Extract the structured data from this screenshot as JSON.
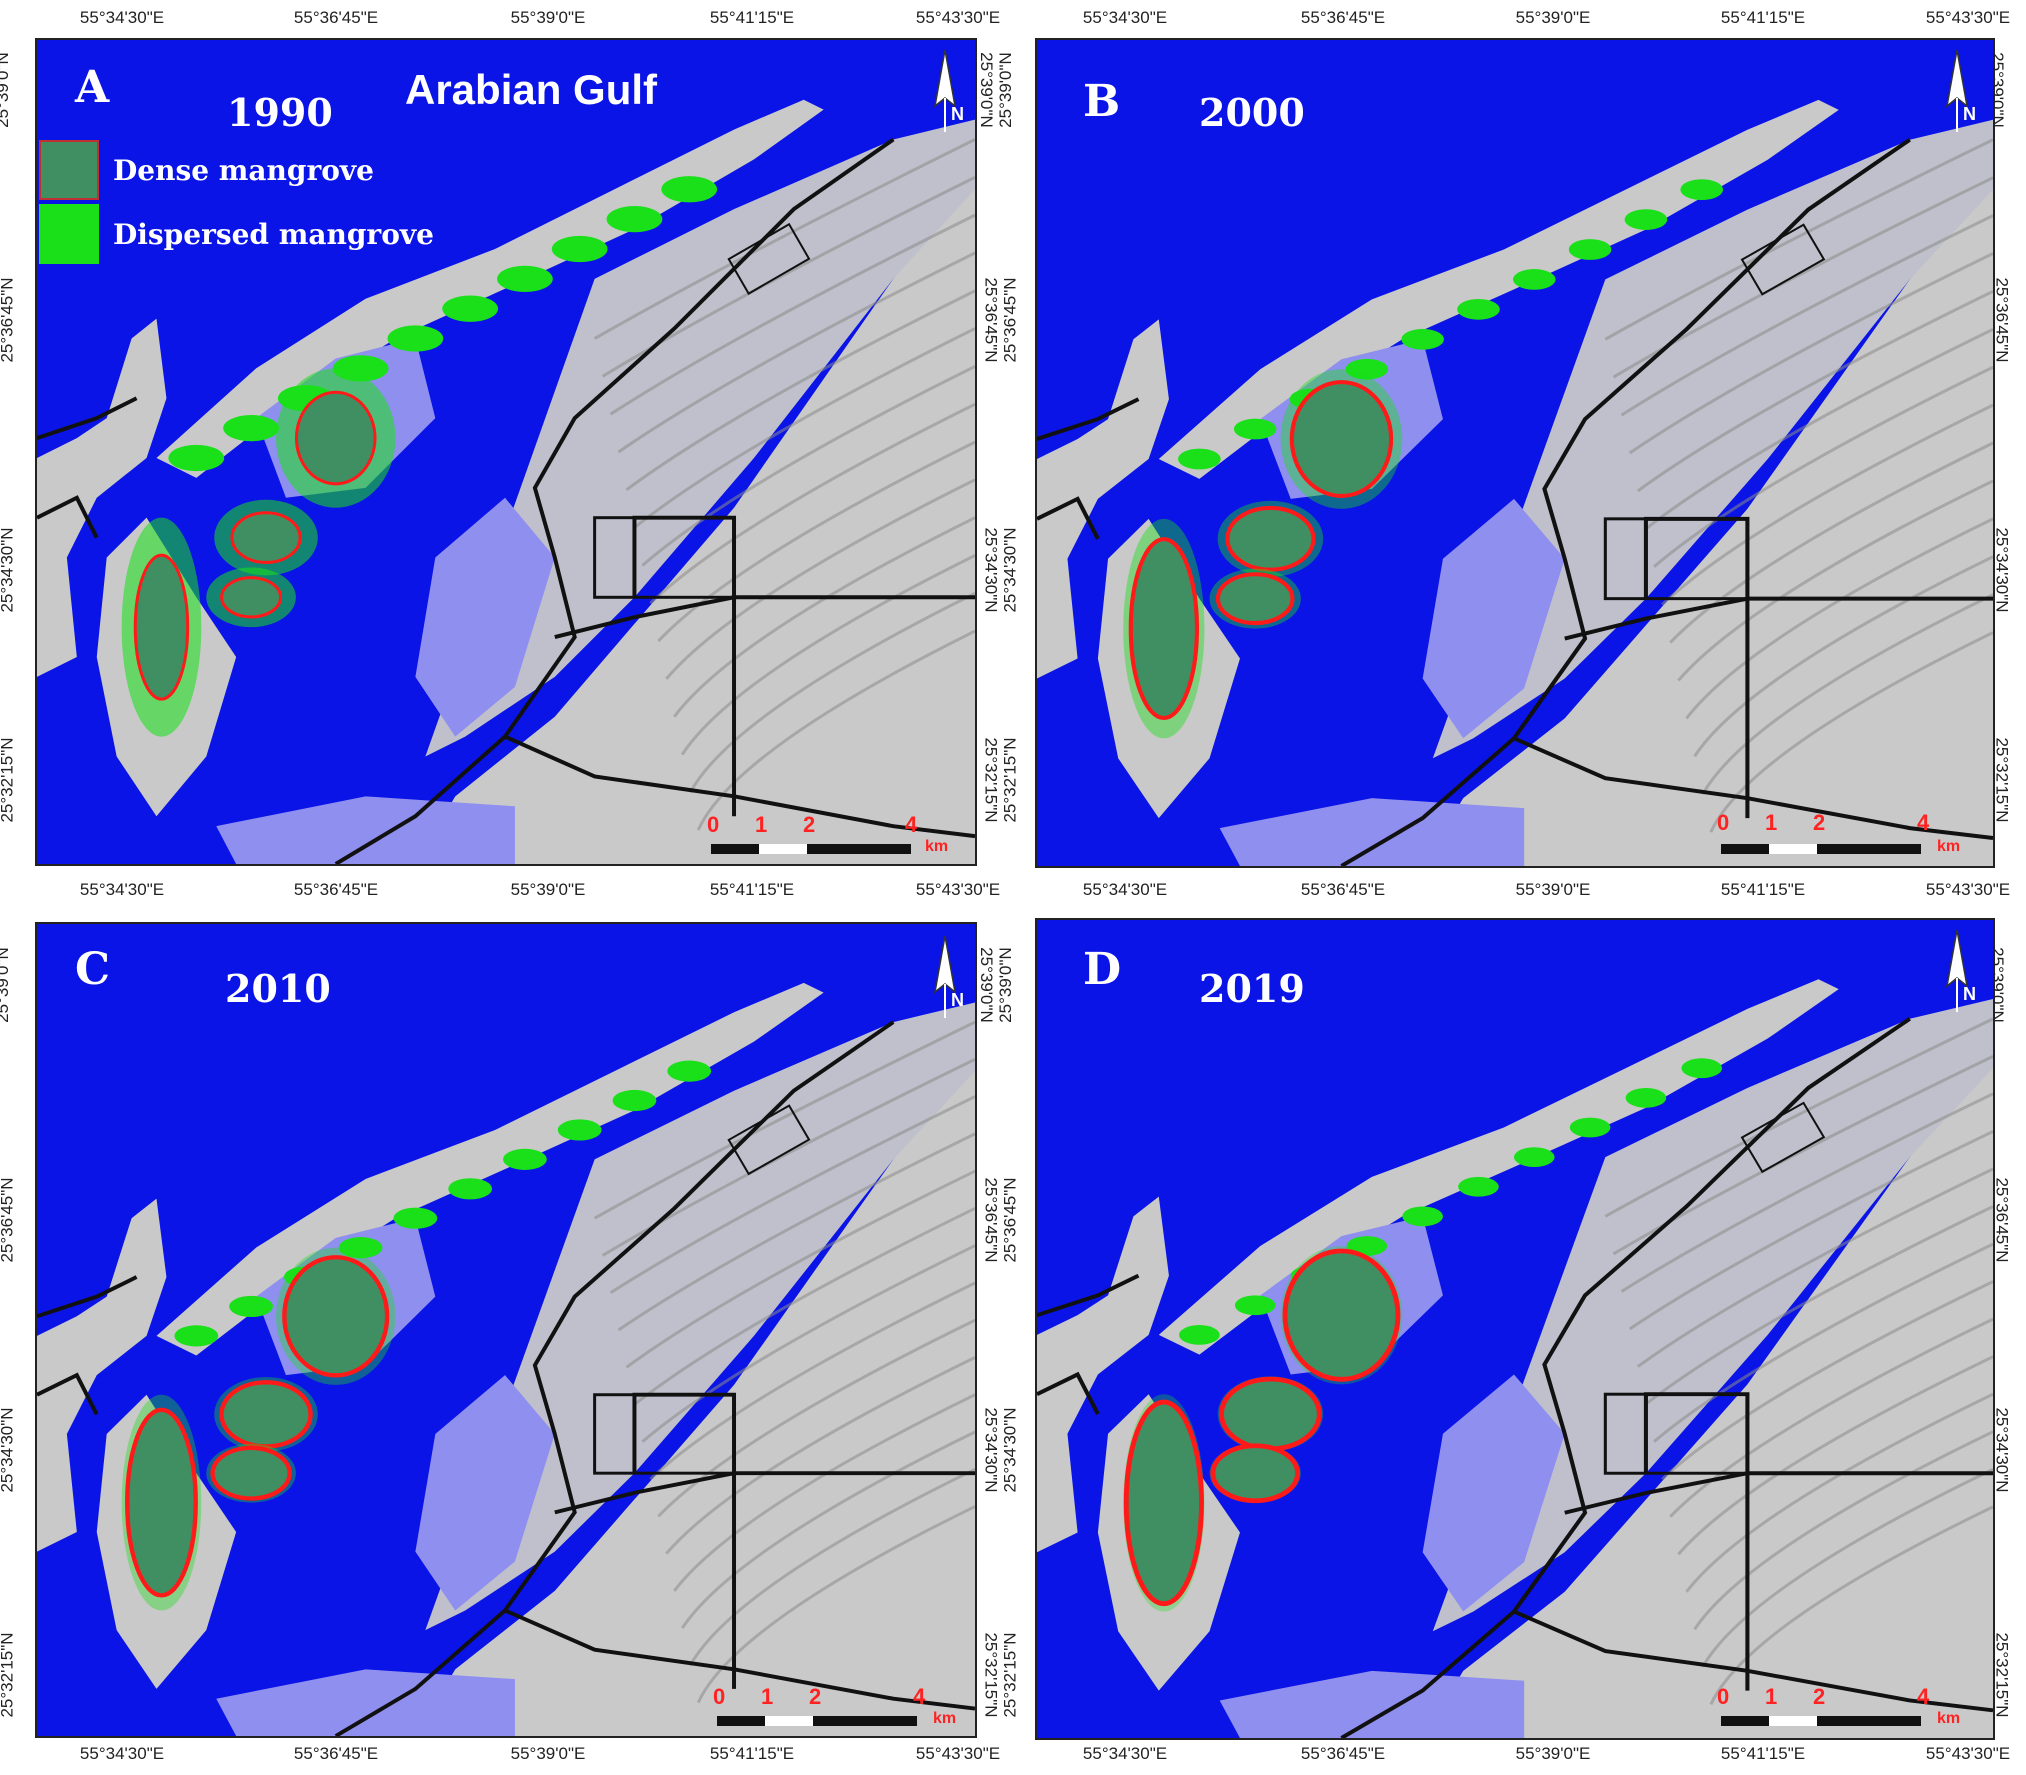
{
  "map": {
    "gulf_label": "Arabian Gulf",
    "legend": [
      {
        "label": "Dense mangrove",
        "color": "#3f8f63",
        "border": "#c03030"
      },
      {
        "label": "Dispersed mangrove",
        "color": "#19e019",
        "border": "#19e019"
      }
    ],
    "colors": {
      "water": "#0a14e6",
      "land": "#c9c9c9",
      "tidal_flat": "#8f8ff0",
      "dense_mangrove": "#3f8f63",
      "dispersed_mangrove": "#19e019",
      "mangrove_edge": "#ff1a1a",
      "road": "#111111",
      "scale": "#ff2222"
    },
    "longitudes_top_row": [
      "55°34'30\"E",
      "55°36'45\"E",
      "55°39'0\"E",
      "55°41'15\"E",
      "55°43'30\"E"
    ],
    "longitudes_bottom_row": [
      "55°34'30\"E",
      "55°36'45\"E",
      "55°39'0\"E",
      "55°41'15\"E",
      "55°43'30\"E"
    ],
    "latitudes": [
      "25°39'0\"N",
      "25°36'45\"N",
      "25°34'30\"N",
      "25°32'15\"N"
    ],
    "scale_labels": [
      "0",
      "1",
      "2",
      "4"
    ],
    "scale_unit": "km",
    "north_symbol": "N",
    "panels": [
      {
        "letter": "A",
        "year": "1990",
        "dense_level": 0.35,
        "dispersed_level": 0.9
      },
      {
        "letter": "B",
        "year": "2000",
        "dense_level": 0.7,
        "dispersed_level": 0.55
      },
      {
        "letter": "C",
        "year": "2010",
        "dense_level": 0.8,
        "dispersed_level": 0.6
      },
      {
        "letter": "D",
        "year": "2019",
        "dense_level": 0.95,
        "dispersed_level": 0.5
      }
    ]
  }
}
